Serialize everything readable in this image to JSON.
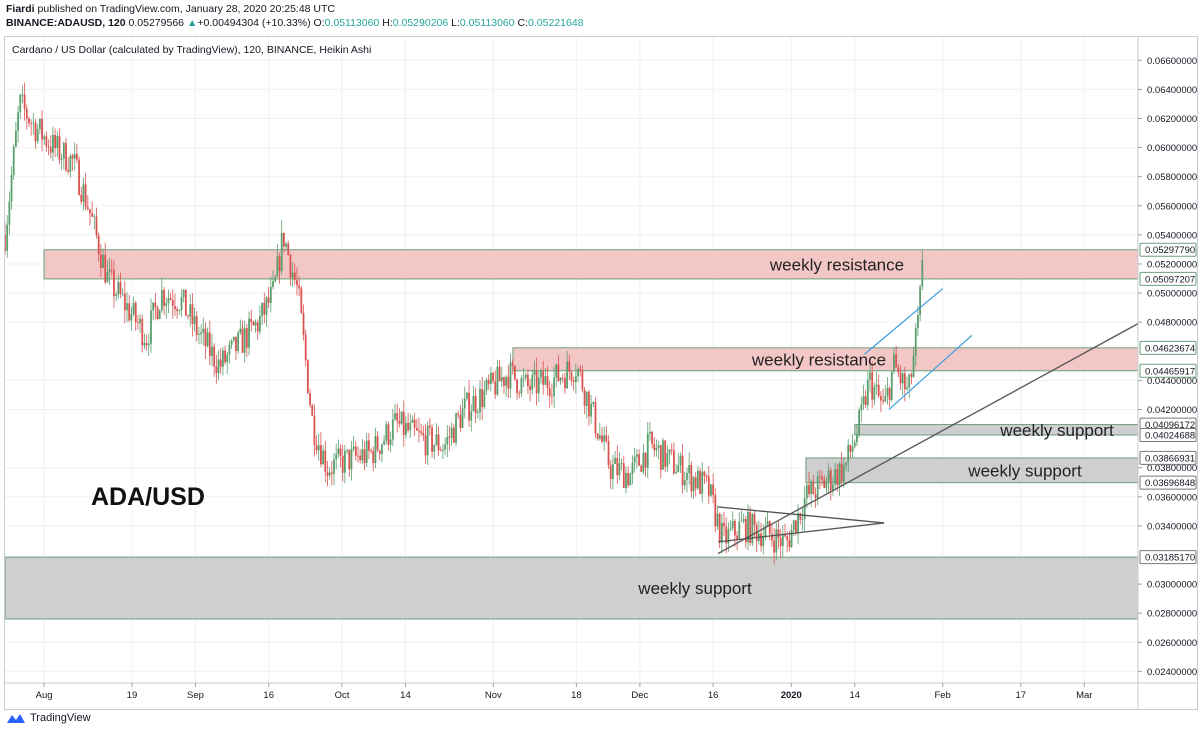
{
  "header": {
    "publisher": "Fiardi",
    "published_text": "published on TradingView.com, January 28, 2020 20:25:48 UTC",
    "symbol": "BINANCE:ADAUSD, 120",
    "last": "0.05279566",
    "change": "+0.00494304 (+10.33%)",
    "open_label": "O:",
    "open": "0.05113060",
    "high_label": "H:",
    "high": "0.05290206",
    "low_label": "L:",
    "low": "0.05113060",
    "close_label": "C:",
    "close": "0.05221648"
  },
  "subtitle": "Cardano / US Dollar (calculated by TradingView), 120, BINANCE, Heikin Ashi",
  "footer": {
    "brand": "TradingView"
  },
  "colors": {
    "up": "#26a69a",
    "down": "#ef5350",
    "candle_up": "#5b9e6d",
    "candle_down": "#d9534f",
    "resistance_fill": "#f4c7c7",
    "support_fill": "#cfcfcf",
    "zone_border": "#6a9f7a",
    "trend_blue": "#3b9ddd",
    "trend_dark": "#555555"
  },
  "chart_data": {
    "type": "candlestick",
    "title": "ADA/USD",
    "ylim": [
      0.0232,
      0.0676
    ],
    "y_ticks": [
      "0.06600000",
      "0.06400000",
      "0.06200000",
      "0.06000000",
      "0.05800000",
      "0.05600000",
      "0.05400000",
      "0.05200000",
      "0.05000000",
      "0.04800000",
      "0.04400000",
      "0.04200000",
      "0.03800000",
      "0.03600000",
      "0.03400000",
      "0.03000000",
      "0.02800000",
      "0.02600000",
      "0.02400000"
    ],
    "x_ticks": [
      "Aug",
      "19",
      "Sep",
      "16",
      "Oct",
      "14",
      "Nov",
      "18",
      "Dec",
      "16",
      "2020",
      "14",
      "Feb",
      "17",
      "Mar"
    ],
    "x_range": [
      "2019-07-24",
      "2020-03-12"
    ],
    "x_tick_dates": [
      "2019-08-01",
      "2019-08-19",
      "2019-09-01",
      "2019-09-16",
      "2019-10-01",
      "2019-10-14",
      "2019-11-01",
      "2019-11-18",
      "2019-12-01",
      "2019-12-16",
      "2020-01-01",
      "2020-01-14",
      "2020-02-01",
      "2020-02-17",
      "2020-03-01"
    ],
    "price_labels": [
      {
        "value": "0.05297790",
        "style": "resistance"
      },
      {
        "value": "0.05097207",
        "style": "resistance"
      },
      {
        "value": "0.04623674",
        "style": "resistance"
      },
      {
        "value": "0.04465917",
        "style": "resistance"
      },
      {
        "value": "0.04096172",
        "style": "support"
      },
      {
        "value": "0.04024688",
        "style": "support"
      },
      {
        "value": "0.03866931",
        "style": "support"
      },
      {
        "value": "0.03696848",
        "style": "support"
      },
      {
        "value": "0.03185170",
        "style": "support"
      }
    ],
    "zones": [
      {
        "label": "weekly resistance",
        "kind": "resistance",
        "y_low": 0.05097207,
        "y_high": 0.0529779,
        "x_start": "2019-08-01",
        "x_end": "2020-03-12"
      },
      {
        "label": "weekly resistance",
        "kind": "resistance",
        "y_low": 0.04465917,
        "y_high": 0.04623674,
        "x_start": "2019-11-05",
        "x_end": "2020-03-12"
      },
      {
        "label": "weekly support",
        "kind": "support",
        "y_low": 0.04024688,
        "y_high": 0.04096172,
        "x_start": "2020-01-14",
        "x_end": "2020-03-12"
      },
      {
        "label": "weekly support",
        "kind": "support",
        "y_low": 0.03696848,
        "y_high": 0.03866931,
        "x_start": "2020-01-04",
        "x_end": "2020-03-12"
      },
      {
        "label": "weekly support",
        "kind": "support",
        "y_low": 0.0276,
        "y_high": 0.0318517,
        "x_start": "2019-07-24",
        "x_end": "2020-03-12"
      }
    ],
    "trendlines": [
      {
        "color": "dark",
        "from": [
          "2019-12-17",
          0.0321
        ],
        "to": [
          "2020-03-12",
          0.0479
        ]
      },
      {
        "color": "dark",
        "from": [
          "2019-12-17",
          0.0329
        ],
        "to": [
          "2020-01-20",
          0.0342
        ]
      },
      {
        "color": "dark",
        "from": [
          "2019-12-17",
          0.0353
        ],
        "to": [
          "2020-01-20",
          0.0342
        ]
      },
      {
        "color": "blue",
        "from": [
          "2020-01-16",
          0.0458
        ],
        "to": [
          "2020-02-01",
          0.0503
        ]
      },
      {
        "color": "blue",
        "from": [
          "2020-01-21",
          0.042
        ],
        "to": [
          "2020-02-07",
          0.0471
        ]
      }
    ],
    "price_path": [
      [
        "2019-07-24",
        0.054
      ],
      [
        "2019-07-27",
        0.063
      ],
      [
        "2019-07-30",
        0.0615
      ],
      [
        "2019-08-03",
        0.06
      ],
      [
        "2019-08-07",
        0.059
      ],
      [
        "2019-08-10",
        0.056
      ],
      [
        "2019-08-14",
        0.051
      ],
      [
        "2019-08-18",
        0.049
      ],
      [
        "2019-08-22",
        0.047
      ],
      [
        "2019-08-25",
        0.05
      ],
      [
        "2019-08-29",
        0.0495
      ],
      [
        "2019-09-02",
        0.047
      ],
      [
        "2019-09-06",
        0.045
      ],
      [
        "2019-09-10",
        0.0465
      ],
      [
        "2019-09-14",
        0.048
      ],
      [
        "2019-09-17",
        0.05
      ],
      [
        "2019-09-19",
        0.054
      ],
      [
        "2019-09-22",
        0.05
      ],
      [
        "2019-09-25",
        0.041
      ],
      [
        "2019-09-28",
        0.038
      ],
      [
        "2019-10-02",
        0.0385
      ],
      [
        "2019-10-07",
        0.039
      ],
      [
        "2019-10-12",
        0.041
      ],
      [
        "2019-10-17",
        0.04
      ],
      [
        "2019-10-22",
        0.0395
      ],
      [
        "2019-10-26",
        0.042
      ],
      [
        "2019-10-30",
        0.043
      ],
      [
        "2019-11-04",
        0.0445
      ],
      [
        "2019-11-08",
        0.0435
      ],
      [
        "2019-11-13",
        0.044
      ],
      [
        "2019-11-18",
        0.045
      ],
      [
        "2019-11-21",
        0.042
      ],
      [
        "2019-11-25",
        0.038
      ],
      [
        "2019-11-29",
        0.0375
      ],
      [
        "2019-12-03",
        0.0395
      ],
      [
        "2019-12-07",
        0.0385
      ],
      [
        "2019-12-11",
        0.0375
      ],
      [
        "2019-12-15",
        0.0365
      ],
      [
        "2019-12-18",
        0.033
      ],
      [
        "2019-12-22",
        0.034
      ],
      [
        "2019-12-27",
        0.0335
      ],
      [
        "2019-12-31",
        0.0328
      ],
      [
        "2020-01-04",
        0.036
      ],
      [
        "2020-01-08",
        0.037
      ],
      [
        "2020-01-12",
        0.038
      ],
      [
        "2020-01-15",
        0.041
      ],
      [
        "2020-01-17",
        0.044
      ],
      [
        "2020-01-20",
        0.042
      ],
      [
        "2020-01-22",
        0.045
      ],
      [
        "2020-01-25",
        0.043
      ],
      [
        "2020-01-27",
        0.048
      ],
      [
        "2020-01-28",
        0.0522
      ]
    ]
  }
}
